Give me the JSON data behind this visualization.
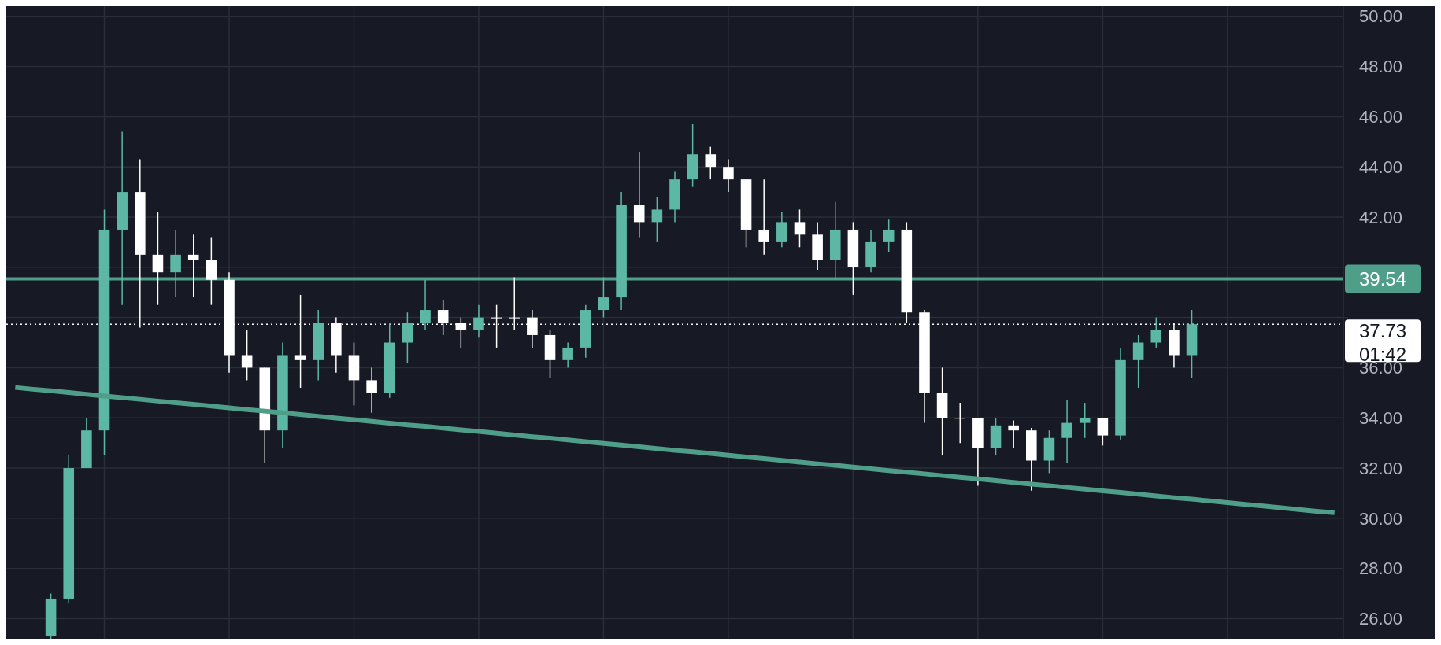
{
  "chart_data": {
    "type": "candlestick",
    "categories": [
      null,
      null,
      null,
      null,
      null,
      null,
      null,
      null,
      null,
      null,
      null,
      null,
      null,
      null,
      null,
      null,
      null,
      null,
      null,
      null,
      null,
      null,
      null,
      null,
      null,
      null,
      null,
      null,
      null,
      null,
      null,
      null,
      null,
      null,
      null,
      null,
      null,
      null,
      null,
      null,
      null,
      null,
      null,
      null,
      null,
      null,
      null,
      null,
      null,
      null,
      null,
      null,
      null,
      null,
      null,
      null,
      null,
      null,
      null,
      null,
      null,
      null,
      null,
      null,
      null,
      null,
      null,
      null,
      null,
      null,
      null,
      null,
      null,
      null,
      null
    ],
    "ohlc": [
      null,
      null,
      [
        25.3,
        27.0,
        25.2,
        26.8
      ],
      [
        26.8,
        32.5,
        26.6,
        32.0
      ],
      [
        32.0,
        34.0,
        32.0,
        33.5
      ],
      [
        33.5,
        42.3,
        32.5,
        41.5
      ],
      [
        41.5,
        45.4,
        38.5,
        43.0
      ],
      [
        43.0,
        44.3,
        37.6,
        40.5
      ],
      [
        40.5,
        42.2,
        38.5,
        39.8
      ],
      [
        39.8,
        41.5,
        38.8,
        40.5
      ],
      [
        40.5,
        41.3,
        38.8,
        40.3
      ],
      [
        40.3,
        41.2,
        38.5,
        39.5
      ],
      [
        39.5,
        39.8,
        35.8,
        36.5
      ],
      [
        36.5,
        37.5,
        35.5,
        36.0
      ],
      [
        36.0,
        36.0,
        32.2,
        33.5
      ],
      [
        33.5,
        37.0,
        32.8,
        36.5
      ],
      [
        36.5,
        38.9,
        35.2,
        36.3
      ],
      [
        36.3,
        38.3,
        35.5,
        37.8
      ],
      [
        37.8,
        38.0,
        35.8,
        36.5
      ],
      [
        36.5,
        37.0,
        34.5,
        35.5
      ],
      [
        35.5,
        36.0,
        34.2,
        35.0
      ],
      [
        35.0,
        37.8,
        34.8,
        37.0
      ],
      [
        37.0,
        38.2,
        36.2,
        37.8
      ],
      [
        37.8,
        39.5,
        37.5,
        38.3
      ],
      [
        38.3,
        38.7,
        37.3,
        37.8
      ],
      [
        37.8,
        38.0,
        36.8,
        37.5
      ],
      [
        37.5,
        38.5,
        37.2,
        38.0
      ],
      [
        38.0,
        38.5,
        36.8,
        38.0
      ],
      [
        38.0,
        39.6,
        37.5,
        38.0
      ],
      [
        38.0,
        38.3,
        36.8,
        37.3
      ],
      [
        37.3,
        37.5,
        35.6,
        36.3
      ],
      [
        36.3,
        37.0,
        36.0,
        36.8
      ],
      [
        36.8,
        38.5,
        36.4,
        38.3
      ],
      [
        38.3,
        39.6,
        38.0,
        38.8
      ],
      [
        38.8,
        43.0,
        38.3,
        42.5
      ],
      [
        42.5,
        44.6,
        41.2,
        41.8
      ],
      [
        41.8,
        42.8,
        41.0,
        42.3
      ],
      [
        42.3,
        43.8,
        41.8,
        43.5
      ],
      [
        43.5,
        45.7,
        43.2,
        44.5
      ],
      [
        44.5,
        44.8,
        43.5,
        44.0
      ],
      [
        44.0,
        44.3,
        43.0,
        43.5
      ],
      [
        43.5,
        43.5,
        40.8,
        41.5
      ],
      [
        41.5,
        43.5,
        40.5,
        41.0
      ],
      [
        41.0,
        42.2,
        40.8,
        41.8
      ],
      [
        41.8,
        42.3,
        40.8,
        41.3
      ],
      [
        41.3,
        41.8,
        39.9,
        40.3
      ],
      [
        40.3,
        42.6,
        39.5,
        41.5
      ],
      [
        41.5,
        41.8,
        38.9,
        40.0
      ],
      [
        40.0,
        41.5,
        39.8,
        41.0
      ],
      [
        41.0,
        41.9,
        40.6,
        41.5
      ],
      [
        41.5,
        41.8,
        37.8,
        38.2
      ],
      [
        38.2,
        38.3,
        33.8,
        35.0
      ],
      [
        35.0,
        36.0,
        32.5,
        34.0
      ],
      [
        34.0,
        34.6,
        33.0,
        34.0
      ],
      [
        34.0,
        34.0,
        31.3,
        32.8
      ],
      [
        32.8,
        34.0,
        32.5,
        33.7
      ],
      [
        33.7,
        33.9,
        32.8,
        33.5
      ],
      [
        33.5,
        33.6,
        31.1,
        32.3
      ],
      [
        32.3,
        33.5,
        31.8,
        33.2
      ],
      [
        33.2,
        34.7,
        32.2,
        33.8
      ],
      [
        33.8,
        34.6,
        33.2,
        34.0
      ],
      [
        34.0,
        34.0,
        32.9,
        33.3
      ],
      [
        33.3,
        36.8,
        33.1,
        36.3
      ],
      [
        36.3,
        37.3,
        35.2,
        37.0
      ],
      [
        37.0,
        38.0,
        36.8,
        37.5
      ],
      [
        37.5,
        37.8,
        36.0,
        36.5
      ],
      [
        36.5,
        38.3,
        35.6,
        37.73
      ],
      null,
      null,
      null,
      null,
      null,
      null,
      null,
      null
    ],
    "colors": [
      null,
      null,
      "#5cb8a4",
      "#5cb8a4",
      "#5cb8a4",
      "#5cb8a4",
      "#5cb8a4",
      "#ffffff",
      "#ffffff",
      "#5cb8a4",
      "#ffffff",
      "#ffffff",
      "#ffffff",
      "#ffffff",
      "#ffffff",
      "#5cb8a4",
      "#ffffff",
      "#5cb8a4",
      "#ffffff",
      "#ffffff",
      "#ffffff",
      "#5cb8a4",
      "#5cb8a4",
      "#5cb8a4",
      "#ffffff",
      "#ffffff",
      "#5cb8a4",
      "#ffffff",
      "#ffffff",
      "#ffffff",
      "#ffffff",
      "#5cb8a4",
      "#5cb8a4",
      "#5cb8a4",
      "#5cb8a4",
      "#ffffff",
      "#5cb8a4",
      "#5cb8a4",
      "#5cb8a4",
      "#ffffff",
      "#ffffff",
      "#ffffff",
      "#ffffff",
      "#5cb8a4",
      "#ffffff",
      "#ffffff",
      "#5cb8a4",
      "#ffffff",
      "#5cb8a4",
      "#5cb8a4",
      "#ffffff",
      "#ffffff",
      "#ffffff",
      "#ffffff",
      "#ffffff",
      "#5cb8a4",
      "#ffffff",
      "#ffffff",
      "#5cb8a4",
      "#5cb8a4",
      "#5cb8a4",
      "#ffffff",
      "#5cb8a4",
      "#5cb8a4",
      "#5cb8a4",
      "#ffffff",
      "#5cb8a4",
      null,
      null,
      null,
      null,
      null,
      null,
      null,
      null
    ],
    "series": [
      {
        "type": "line",
        "color": "#4f9e89",
        "values": [
          35.21,
          35.14,
          35.08,
          35.01,
          34.94,
          34.87,
          34.81,
          34.74,
          34.67,
          34.6,
          34.54,
          34.47,
          34.4,
          34.33,
          34.27,
          34.2,
          34.13,
          34.06,
          33.99,
          33.93,
          33.86,
          33.79,
          33.72,
          33.66,
          33.59,
          33.52,
          33.46,
          33.39,
          33.32,
          33.25,
          33.19,
          33.12,
          33.05,
          32.98,
          32.92,
          32.85,
          32.78,
          32.71,
          32.65,
          32.58,
          32.51,
          32.44,
          32.38,
          32.31,
          32.24,
          32.17,
          32.11,
          32.04,
          31.97,
          31.9,
          31.84,
          31.77,
          31.7,
          31.63,
          31.57,
          31.5,
          31.43,
          31.36,
          31.3,
          31.23,
          31.16,
          31.09,
          31.03,
          30.96,
          30.89,
          30.82,
          30.76,
          30.69,
          30.62,
          30.55,
          30.49,
          30.42,
          30.35,
          30.28,
          30.22
        ]
      }
    ],
    "ylim": [
      25.2,
      50.4
    ],
    "yticks": [
      {
        "value": 26,
        "label": "26.00"
      },
      {
        "value": 28,
        "label": "28.00"
      },
      {
        "value": 30,
        "label": "30.00"
      },
      {
        "value": 32,
        "label": "32.00"
      },
      {
        "value": 34,
        "label": "34.00"
      },
      {
        "value": 36,
        "label": "36.00"
      },
      {
        "value": 38,
        "label": null
      },
      {
        "value": 40,
        "label": null
      },
      {
        "value": 42,
        "label": "42.00"
      },
      {
        "value": 44,
        "label": "44.00"
      },
      {
        "value": 46,
        "label": "46.00"
      },
      {
        "value": 48,
        "label": "48.00"
      },
      {
        "value": 50,
        "label": "50.00"
      }
    ],
    "ref_lines": [
      {
        "axis": "y",
        "value": 39.54,
        "label": "39.54",
        "color": "#4f9e89",
        "line_style": "solid"
      },
      {
        "axis": "y",
        "value": 37.73,
        "label": "37.73",
        "color": "#ffffff",
        "line_style": "dotted"
      }
    ],
    "annotations": [
      "01:42"
    ],
    "grid": true,
    "tick_labels": "y"
  }
}
